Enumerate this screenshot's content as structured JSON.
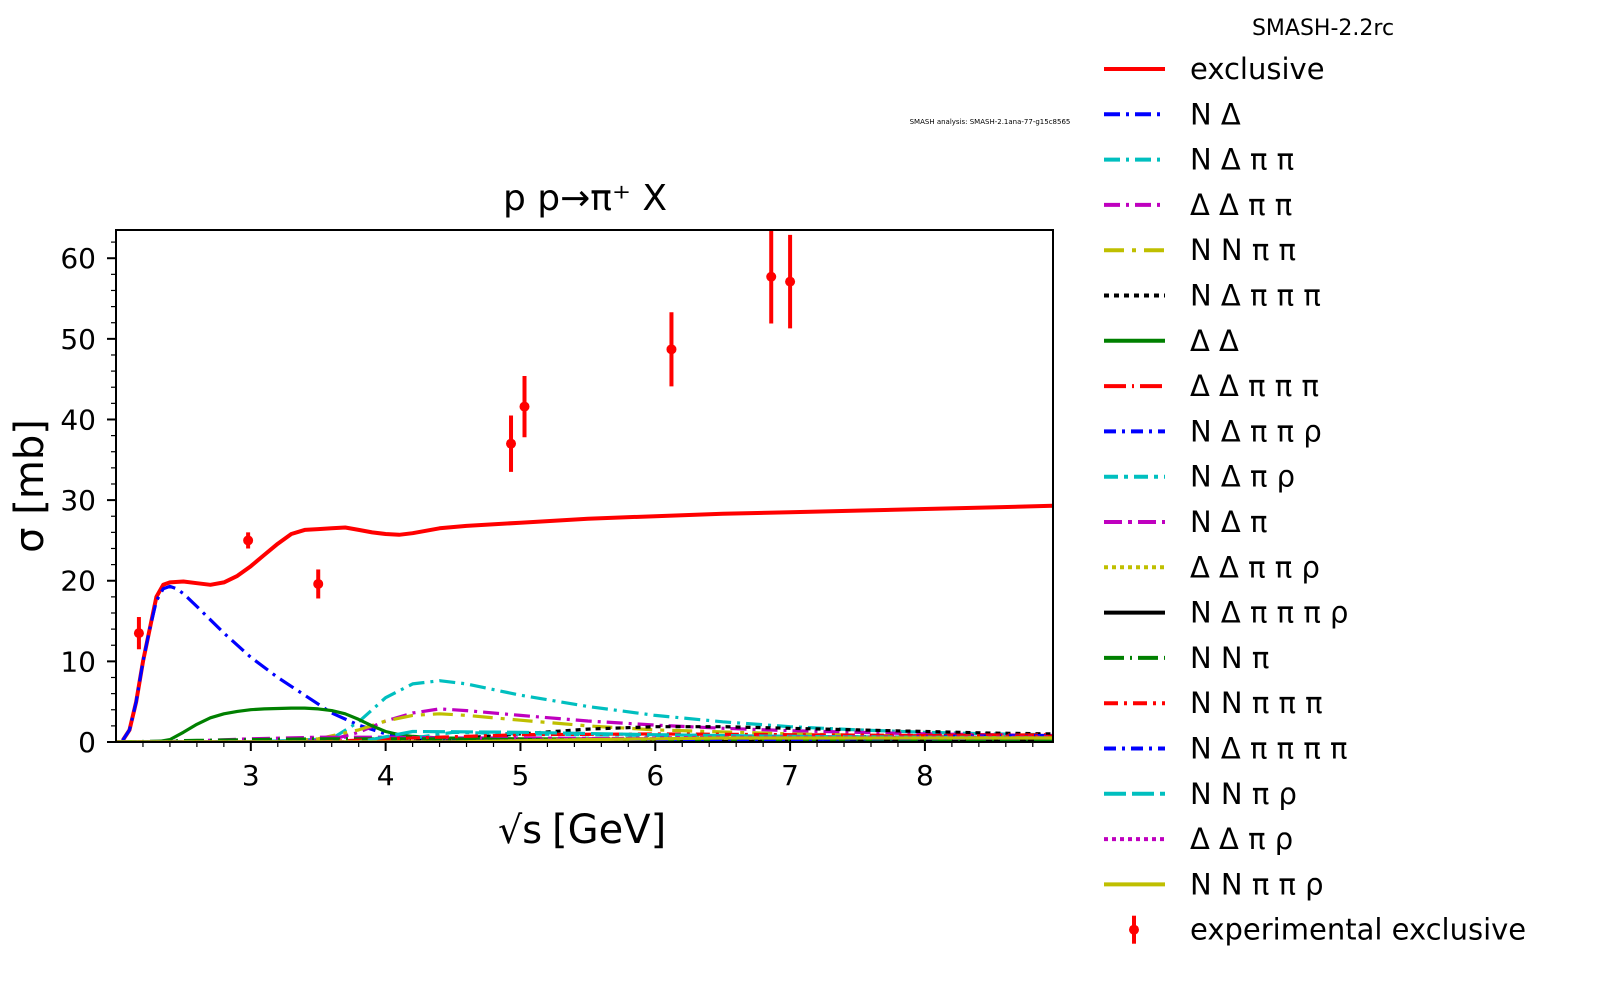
{
  "chart_data": {
    "type": "line",
    "title": "p p→π⁺ X",
    "version_label": "SMASH-2.2rc",
    "analysis_label": "SMASH analysis: SMASH-2.1ana-77-g15c8565",
    "xlabel": "[GeV]",
    "xlabel_sqrt": "√s",
    "ylabel": "σ [mb]",
    "xlim": [
      2.0,
      8.95
    ],
    "ylim": [
      0,
      63.5
    ],
    "xticks": [
      3,
      4,
      5,
      6,
      7,
      8
    ],
    "yticks": [
      0,
      10,
      20,
      30,
      40,
      50,
      60
    ],
    "grid": false,
    "legend_position": "right, outside plot",
    "series": [
      {
        "name": "exclusive",
        "color": "#ff0000",
        "dash": "solid",
        "x": [
          2.05,
          2.1,
          2.15,
          2.2,
          2.25,
          2.3,
          2.35,
          2.4,
          2.5,
          2.6,
          2.7,
          2.8,
          2.9,
          3.0,
          3.1,
          3.2,
          3.3,
          3.4,
          3.5,
          3.6,
          3.7,
          3.8,
          3.9,
          4.0,
          4.1,
          4.2,
          4.4,
          4.6,
          5.0,
          5.5,
          6.0,
          6.5,
          7.0,
          7.5,
          8.0,
          8.5,
          8.95
        ],
        "y": [
          0.2,
          1.5,
          5,
          10,
          14,
          18,
          19.5,
          19.8,
          19.9,
          19.7,
          19.5,
          19.8,
          20.6,
          21.8,
          23.2,
          24.6,
          25.8,
          26.3,
          26.4,
          26.5,
          26.6,
          26.3,
          26,
          25.8,
          25.7,
          25.9,
          26.5,
          26.8,
          27.2,
          27.7,
          28.0,
          28.3,
          28.5,
          28.7,
          28.9,
          29.1,
          29.3
        ]
      },
      {
        "name": "N Δ",
        "color": "#0000ff",
        "dash": "16,6,3,6",
        "x": [
          2.05,
          2.1,
          2.15,
          2.2,
          2.25,
          2.3,
          2.35,
          2.4,
          2.45,
          2.5,
          2.6,
          2.8,
          3.0,
          3.2,
          3.4,
          3.6,
          3.8,
          4.0,
          4.1,
          4.2,
          4.4,
          5.0,
          6.0,
          7.0,
          8.0,
          8.95
        ],
        "y": [
          0.2,
          1.5,
          5,
          10,
          14,
          17.5,
          19,
          19.3,
          19,
          18.4,
          16.8,
          13.5,
          10.5,
          8,
          5.8,
          3.6,
          2.1,
          1.0,
          0.7,
          0.5,
          0.35,
          0.3,
          0.25,
          0.2,
          0.2,
          0.2
        ]
      },
      {
        "name": "N Δ π π",
        "color": "#00bfbf",
        "dash": "16,6,3,6",
        "x": [
          2.0,
          3.0,
          3.6,
          3.8,
          4.0,
          4.2,
          4.4,
          4.6,
          4.8,
          5.0,
          5.5,
          6.0,
          6.5,
          7.0,
          7.5,
          8.0,
          8.5,
          8.95
        ],
        "y": [
          0,
          0,
          0.4,
          2.5,
          5.5,
          7.2,
          7.6,
          7.2,
          6.5,
          5.8,
          4.4,
          3.3,
          2.5,
          1.9,
          1.5,
          1.2,
          1.0,
          0.9
        ]
      },
      {
        "name": "Δ Δ π π",
        "color": "#bf00bf",
        "dash": "16,6,3,6",
        "x": [
          2.0,
          3.3,
          3.6,
          3.8,
          4.0,
          4.2,
          4.4,
          4.6,
          5.0,
          5.5,
          6.0,
          6.5,
          7.0,
          8.0,
          8.95
        ],
        "y": [
          0,
          0,
          0.3,
          1.2,
          2.6,
          3.6,
          4.1,
          3.9,
          3.3,
          2.6,
          2.1,
          1.7,
          1.4,
          1.0,
          0.8
        ]
      },
      {
        "name": "N N π π",
        "color": "#bfbf00",
        "dash": "20,8,4,8",
        "x": [
          2.0,
          3.2,
          3.5,
          3.8,
          4.0,
          4.2,
          4.4,
          4.6,
          5.0,
          5.5,
          6.0,
          7.0,
          8.0,
          8.95
        ],
        "y": [
          0,
          0,
          0.4,
          1.5,
          2.6,
          3.3,
          3.5,
          3.3,
          2.7,
          2.0,
          1.5,
          1.0,
          0.7,
          0.6
        ]
      },
      {
        "name": "N Δ π π π",
        "color": "#000000",
        "dash": "5,5",
        "x": [
          2.0,
          4.0,
          4.5,
          5.0,
          5.5,
          6.0,
          6.5,
          7.0,
          7.5,
          8.0,
          8.5,
          8.95
        ],
        "y": [
          0,
          0,
          0.4,
          1.0,
          1.6,
          1.9,
          1.9,
          1.7,
          1.5,
          1.3,
          1.1,
          1.0
        ]
      },
      {
        "name": "Δ Δ",
        "color": "#008000",
        "dash": "solid",
        "x": [
          2.0,
          2.3,
          2.4,
          2.5,
          2.6,
          2.7,
          2.8,
          2.9,
          3.0,
          3.1,
          3.2,
          3.3,
          3.4,
          3.5,
          3.6,
          3.7,
          3.8,
          3.9,
          4.0,
          4.1,
          4.2,
          4.4,
          5.0,
          6.0,
          7.0,
          8.0,
          8.95
        ],
        "y": [
          0,
          0,
          0.3,
          1.2,
          2.2,
          3.0,
          3.5,
          3.8,
          4.0,
          4.1,
          4.15,
          4.2,
          4.2,
          4.1,
          3.9,
          3.5,
          2.8,
          2.0,
          1.3,
          0.9,
          0.7,
          0.5,
          0.4,
          0.35,
          0.3,
          0.3,
          0.3
        ]
      },
      {
        "name": "Δ Δ π π π",
        "color": "#ff0000",
        "dash": "22,6,2,6",
        "x": [
          2.0,
          5.0,
          6.0,
          7.0,
          8.0,
          8.95
        ],
        "y": [
          0,
          0,
          0.2,
          0.5,
          0.8,
          0.9
        ]
      },
      {
        "name": "N Δ π π ρ",
        "color": "#0000ff",
        "dash": "12,6,3,6",
        "x": [
          2.0,
          5.0,
          6.0,
          7.0,
          8.0,
          8.95
        ],
        "y": [
          0,
          0,
          0.2,
          0.5,
          0.7,
          0.8
        ]
      },
      {
        "name": "N Δ π ρ",
        "color": "#00bfbf",
        "dash": "14,6,4,6",
        "x": [
          2.0,
          4.0,
          4.5,
          5.0,
          6.0,
          7.0,
          8.0,
          8.95
        ],
        "y": [
          0,
          0,
          1.2,
          1.0,
          0.8,
          0.7,
          0.6,
          0.5
        ]
      },
      {
        "name": "N Δ π",
        "color": "#bf00bf",
        "dash": "18,6,4,6",
        "x": [
          2.0,
          2.5,
          3.0,
          3.5,
          4.0,
          4.5,
          5.0,
          6.0,
          7.0,
          8.0,
          8.95
        ],
        "y": [
          0,
          0.1,
          0.4,
          0.6,
          0.6,
          0.5,
          0.5,
          0.4,
          0.3,
          0.3,
          0.3
        ]
      },
      {
        "name": "Δ Δ π π ρ",
        "color": "#bfbf00",
        "dash": "4,4",
        "x": [
          2.0,
          5.5,
          6.5,
          7.5,
          8.95
        ],
        "y": [
          0,
          0,
          0.2,
          0.4,
          0.5
        ]
      },
      {
        "name": "N Δ π π π ρ",
        "color": "#000000",
        "dash": "solid",
        "x": [
          2.0,
          6.0,
          7.0,
          8.0,
          8.95
        ],
        "y": [
          0,
          0,
          0.1,
          0.2,
          0.3
        ]
      },
      {
        "name": "N N π",
        "color": "#008000",
        "dash": "20,6,2,6",
        "x": [
          2.0,
          2.3,
          2.6,
          3.0,
          3.5,
          4.0,
          4.5,
          5.0,
          6.0,
          7.0,
          8.0,
          8.95
        ],
        "y": [
          0,
          0.1,
          0.2,
          0.3,
          0.4,
          0.4,
          0.4,
          0.3,
          0.3,
          0.2,
          0.2,
          0.2
        ]
      },
      {
        "name": "N N π π π",
        "color": "#ff0000",
        "dash": "14,6,3,6",
        "x": [
          2.0,
          3.5,
          4.0,
          5.0,
          6.0,
          7.0,
          8.0,
          8.95
        ],
        "y": [
          0,
          0,
          0.4,
          0.9,
          1.0,
          0.9,
          0.8,
          0.7
        ]
      },
      {
        "name": "N Δ π π π π",
        "color": "#0000ff",
        "dash": "12,6,3,6",
        "x": [
          2.0,
          5.5,
          6.5,
          7.5,
          8.95
        ],
        "y": [
          0,
          0,
          0.2,
          0.4,
          0.5
        ]
      },
      {
        "name": "N N π ρ",
        "color": "#00bfbf",
        "dash": "22,6",
        "x": [
          2.0,
          3.8,
          4.2,
          5.0,
          6.0,
          7.0,
          8.0,
          8.95
        ],
        "y": [
          0,
          0,
          1.3,
          1.2,
          0.9,
          0.7,
          0.6,
          0.5
        ]
      },
      {
        "name": "Δ Δ π ρ",
        "color": "#bf00bf",
        "dash": "4,4",
        "x": [
          2.0,
          4.5,
          5.5,
          6.5,
          7.5,
          8.95
        ],
        "y": [
          0,
          0,
          0.4,
          0.6,
          0.6,
          0.6
        ]
      },
      {
        "name": "N N π π ρ",
        "color": "#bfbf00",
        "dash": "solid",
        "x": [
          2.0,
          4.5,
          5.5,
          6.5,
          7.5,
          8.95
        ],
        "y": [
          0,
          0,
          0.3,
          0.5,
          0.5,
          0.5
        ]
      }
    ],
    "experimental": {
      "name": "experimental exclusive",
      "color": "#ff0000",
      "points": [
        {
          "x": 2.17,
          "y": 13.5,
          "err": 2.0
        },
        {
          "x": 2.98,
          "y": 25.0,
          "err": 1.0
        },
        {
          "x": 3.5,
          "y": 19.6,
          "err": 1.8
        },
        {
          "x": 4.93,
          "y": 37.0,
          "err": 3.5
        },
        {
          "x": 5.03,
          "y": 41.6,
          "err": 3.8
        },
        {
          "x": 6.12,
          "y": 48.7,
          "err": 4.6
        },
        {
          "x": 6.86,
          "y": 57.7,
          "err": 5.8
        },
        {
          "x": 7.0,
          "y": 57.1,
          "err": 5.8
        }
      ]
    }
  }
}
